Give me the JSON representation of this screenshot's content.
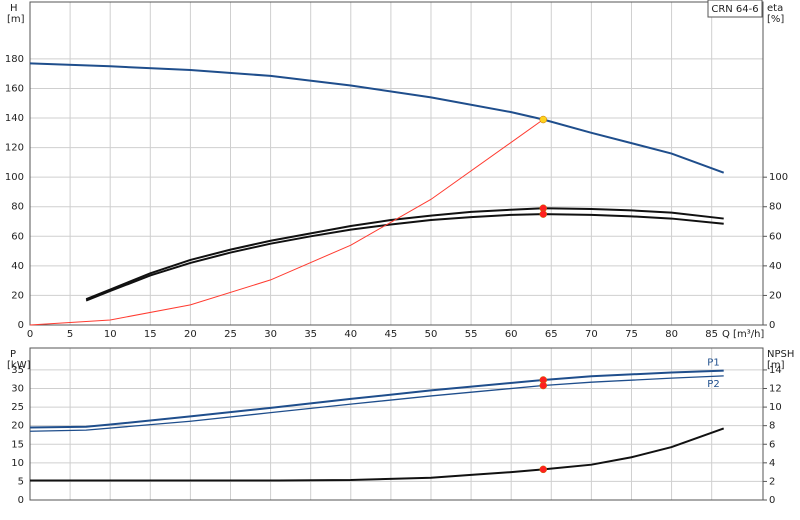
{
  "chart_data": [
    {
      "type": "line",
      "label_box": "CRN 64-6",
      "ylabel": "H",
      "yunit": "[m]",
      "y2label": "eta",
      "y2unit": "[%]",
      "xlabel": "Q [m³/h]",
      "xlim": [
        0,
        91.4
      ],
      "xticks": [
        0,
        5,
        10,
        15,
        20,
        25,
        30,
        35,
        40,
        45,
        50,
        55,
        60,
        65,
        70,
        75,
        80,
        85
      ],
      "ylim": [
        0,
        218.5
      ],
      "yticks": [
        0,
        20,
        40,
        60,
        80,
        100,
        120,
        140,
        160,
        180
      ],
      "y2lim": [
        0,
        218.5
      ],
      "y2ticks": [
        0,
        20,
        40,
        60,
        80,
        100
      ],
      "grid": true,
      "series": [
        {
          "color": "#1f4e8c",
          "width": 2,
          "x": [
            0,
            10,
            20,
            30,
            40,
            50,
            60,
            64,
            70,
            80,
            86.5
          ],
          "values": [
            177,
            175,
            172.5,
            168.5,
            162,
            154,
            144,
            139,
            130,
            116,
            103
          ]
        },
        {
          "color": "#111111",
          "width": 2,
          "axis": "y2",
          "x": [
            7,
            10,
            15,
            20,
            25,
            30,
            35,
            40,
            45,
            50,
            55,
            60,
            64,
            70,
            75,
            80,
            86.5
          ],
          "values": [
            17.5,
            24,
            35,
            44,
            51,
            57,
            62,
            67,
            71,
            74,
            76.5,
            78,
            79,
            78.5,
            77.5,
            76,
            72
          ]
        },
        {
          "color": "#111111",
          "width": 2,
          "axis": "y2",
          "x": [
            7,
            10,
            15,
            20,
            25,
            30,
            35,
            40,
            45,
            50,
            55,
            60,
            64,
            70,
            75,
            80,
            86.5
          ],
          "values": [
            16.5,
            23,
            33.5,
            42,
            49,
            55,
            60,
            64.5,
            68,
            71,
            73,
            74.5,
            75,
            74.5,
            73.5,
            72,
            68.5
          ]
        },
        {
          "color": "#ff3b30",
          "width": 1,
          "x": [
            0,
            10,
            20,
            30,
            40,
            50,
            64
          ],
          "values": [
            0,
            3.4,
            13.6,
            30.5,
            54,
            85,
            139
          ]
        }
      ],
      "points": [
        {
          "color": "#ffd21f",
          "x": 64,
          "y": 139
        },
        {
          "color": "#ff2020",
          "axis": "y2",
          "x": 64,
          "y": 79
        },
        {
          "color": "#ff2020",
          "axis": "y2",
          "x": 64,
          "y": 75
        }
      ]
    },
    {
      "type": "line",
      "ylabel": "P",
      "yunit": "[kW]",
      "y2label": "NPSH",
      "y2unit": "[m]",
      "xlim": [
        0,
        91.4
      ],
      "xticks": [
        0,
        5,
        10,
        15,
        20,
        25,
        30,
        35,
        40,
        45,
        50,
        55,
        60,
        65,
        70,
        75,
        80,
        85
      ],
      "ylim": [
        0,
        40.9
      ],
      "yticks": [
        0,
        5,
        10,
        15,
        20,
        25,
        30,
        35
      ],
      "y2lim": [
        0,
        16.36
      ],
      "y2ticks": [
        0,
        2,
        4,
        6,
        8,
        10,
        12,
        14
      ],
      "grid": true,
      "series": [
        {
          "name": "P1",
          "color": "#1f4e8c",
          "width": 2,
          "x": [
            0,
            7,
            10,
            20,
            30,
            40,
            50,
            64,
            70,
            80,
            86.5
          ],
          "values": [
            19.5,
            19.7,
            20.3,
            22.5,
            24.8,
            27.2,
            29.5,
            32.3,
            33.3,
            34.3,
            34.8
          ]
        },
        {
          "name": "P2",
          "color": "#1f4e8c",
          "width": 1.3,
          "x": [
            0,
            7,
            20,
            30,
            40,
            50,
            64,
            70,
            80,
            86.5
          ],
          "values": [
            18.5,
            18.8,
            21.2,
            23.5,
            25.8,
            28,
            30.8,
            31.7,
            32.8,
            33.4
          ]
        },
        {
          "color": "#111111",
          "width": 2,
          "axis": "y2",
          "x": [
            0,
            31,
            40,
            50,
            55,
            60,
            64,
            70,
            75,
            80,
            86.5
          ],
          "values": [
            2.1,
            2.1,
            2.15,
            2.4,
            2.7,
            3.0,
            3.3,
            3.8,
            4.6,
            5.7,
            7.7
          ]
        }
      ],
      "points": [
        {
          "color": "#ff2020",
          "x": 64,
          "y": 32.3
        },
        {
          "color": "#ff2020",
          "x": 64,
          "y": 30.8
        },
        {
          "color": "#ff2020",
          "axis": "y2",
          "x": 64,
          "y": 3.3
        }
      ]
    }
  ]
}
